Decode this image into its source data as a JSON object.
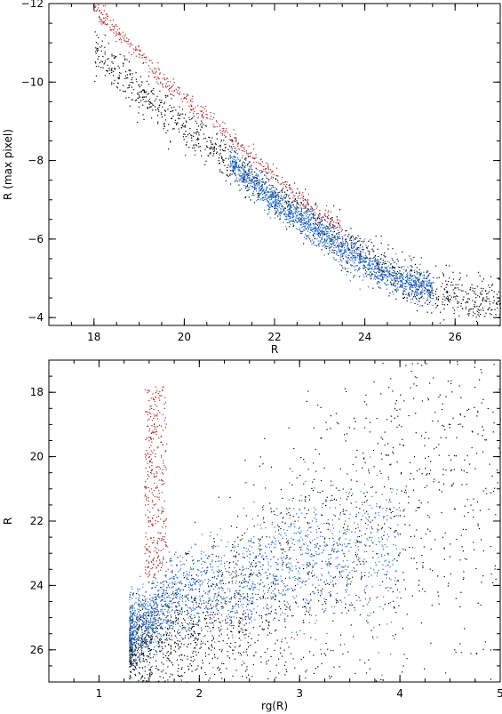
{
  "chart_data": [
    {
      "type": "scatter",
      "xlabel": "R",
      "ylabel": "R (max pixel)",
      "xlim": [
        17.0,
        27.0
      ],
      "ylim": [
        -3.8,
        -12.0
      ],
      "y_inverted": true,
      "xticks": [
        18,
        20,
        22,
        24,
        26
      ],
      "yticks": [
        -4,
        -6,
        -8,
        -10,
        -12
      ],
      "xtick_labels": [
        "18",
        "20",
        "22",
        "24",
        "26"
      ],
      "ytick_labels": [
        "−4",
        "−6",
        "−8",
        "−10",
        "−12"
      ],
      "series": [
        {
          "color": "#000000",
          "points": [
            [
              18.0,
              -10.8
            ],
            [
              18.5,
              -10.3
            ],
            [
              19.0,
              -9.8
            ],
            [
              19.5,
              -9.3
            ],
            [
              20.0,
              -8.9
            ],
            [
              20.5,
              -8.5
            ],
            [
              21.0,
              -8.0
            ],
            [
              21.5,
              -7.6
            ],
            [
              22.0,
              -7.1
            ],
            [
              22.5,
              -6.7
            ],
            [
              23.0,
              -6.3
            ],
            [
              23.5,
              -5.9
            ],
            [
              24.0,
              -5.5
            ],
            [
              24.5,
              -5.2
            ],
            [
              25.0,
              -4.9
            ],
            [
              25.5,
              -4.7
            ],
            [
              26.0,
              -4.55
            ],
            [
              26.5,
              -4.45
            ],
            [
              27.0,
              -4.4
            ]
          ]
        },
        {
          "color": "#b22222",
          "points": [
            [
              18.0,
              -11.9
            ],
            [
              18.5,
              -11.3
            ],
            [
              19.0,
              -10.7
            ],
            [
              19.5,
              -10.1
            ],
            [
              20.0,
              -9.6
            ],
            [
              20.5,
              -9.1
            ],
            [
              21.0,
              -8.6
            ],
            [
              21.5,
              -8.1
            ],
            [
              22.0,
              -7.6
            ],
            [
              22.5,
              -7.1
            ],
            [
              23.0,
              -6.7
            ],
            [
              23.5,
              -6.3
            ]
          ]
        },
        {
          "color": "#1e6fd9",
          "points": [
            [
              21.0,
              -8.0
            ],
            [
              21.5,
              -7.5
            ],
            [
              22.0,
              -7.0
            ],
            [
              22.5,
              -6.6
            ],
            [
              23.0,
              -6.2
            ],
            [
              23.5,
              -5.8
            ],
            [
              24.0,
              -5.4
            ],
            [
              24.5,
              -5.1
            ],
            [
              25.0,
              -4.9
            ],
            [
              25.5,
              -4.75
            ]
          ]
        }
      ]
    },
    {
      "type": "scatter",
      "xlabel": "rg(R)",
      "ylabel": "R",
      "xlim": [
        0.5,
        5.0
      ],
      "ylim": [
        27.0,
        17.0
      ],
      "y_inverted": true,
      "xticks": [
        1,
        2,
        3,
        4,
        5
      ],
      "yticks": [
        18,
        20,
        22,
        24,
        26
      ],
      "xtick_labels": [
        "1",
        "2",
        "3",
        "4",
        "5"
      ],
      "ytick_labels": [
        "18",
        "20",
        "22",
        "24",
        "26"
      ],
      "series": [
        {
          "color": "#000000",
          "points": [
            [
              1.3,
              25.9
            ],
            [
              1.5,
              25.8
            ],
            [
              1.7,
              25.5
            ],
            [
              2.0,
              25.2
            ],
            [
              2.3,
              24.8
            ],
            [
              2.6,
              24.5
            ],
            [
              3.0,
              23.8
            ],
            [
              3.5,
              22.5
            ],
            [
              4.0,
              21.0
            ],
            [
              4.5,
              20.0
            ],
            [
              5.0,
              19.0
            ]
          ]
        },
        {
          "color": "#b22222",
          "points": [
            [
              1.5,
              18.0
            ],
            [
              1.55,
              19.0
            ],
            [
              1.6,
              20.0
            ],
            [
              1.6,
              21.0
            ],
            [
              1.55,
              22.0
            ],
            [
              1.6,
              23.0
            ],
            [
              1.6,
              23.6
            ]
          ]
        },
        {
          "color": "#1e6fd9",
          "points": [
            [
              1.3,
              25.5
            ],
            [
              1.5,
              25.0
            ],
            [
              1.7,
              24.5
            ],
            [
              2.0,
              24.2
            ],
            [
              2.3,
              24.0
            ],
            [
              2.6,
              23.6
            ],
            [
              3.0,
              23.2
            ],
            [
              3.5,
              23.0
            ],
            [
              4.0,
              22.8
            ]
          ]
        }
      ]
    }
  ]
}
